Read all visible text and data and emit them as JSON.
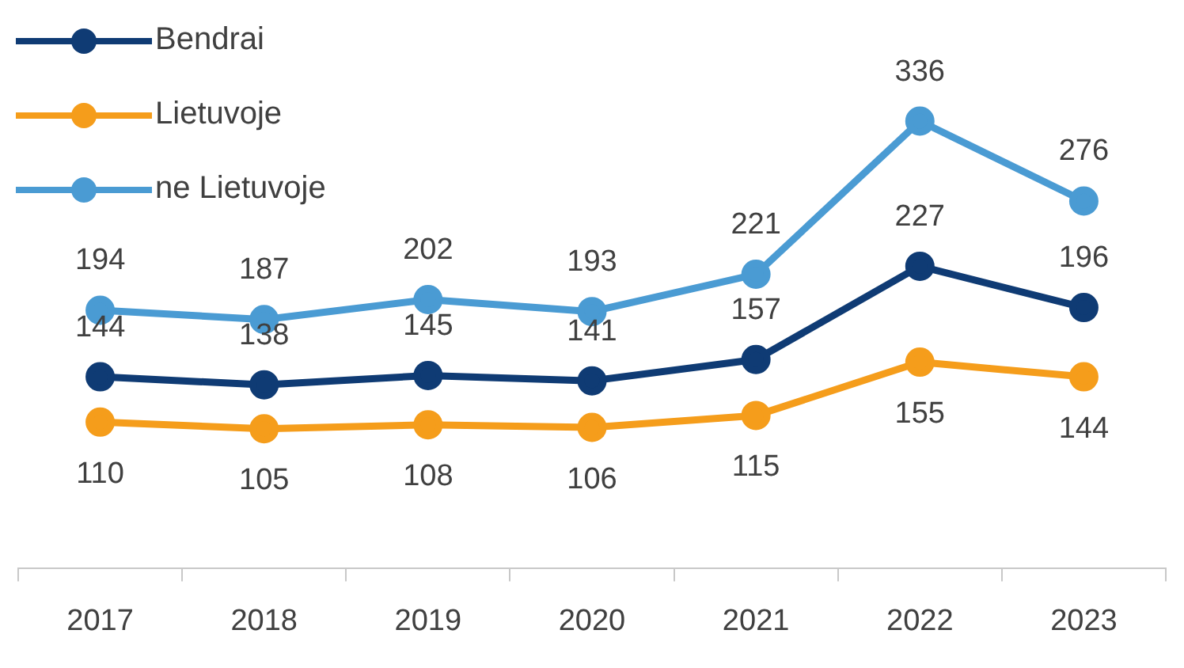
{
  "chart_data": {
    "type": "line",
    "categories": [
      "2017",
      "2018",
      "2019",
      "2020",
      "2021",
      "2022",
      "2023"
    ],
    "series": [
      {
        "name": "Bendrai",
        "color": "#0f3b74",
        "values": [
          144,
          138,
          145,
          141,
          157,
          227,
          196
        ]
      },
      {
        "name": "Lietuvoje",
        "color": "#f59d1b",
        "values": [
          110,
          105,
          108,
          106,
          115,
          155,
          144
        ]
      },
      {
        "name": "ne Lietuvoje",
        "color": "#4a9bd3",
        "values": [
          194,
          187,
          202,
          193,
          221,
          336,
          276
        ]
      }
    ],
    "data_labels": true,
    "legend": "top left",
    "marker": "circle",
    "line_style": "solid",
    "grid": false
  }
}
